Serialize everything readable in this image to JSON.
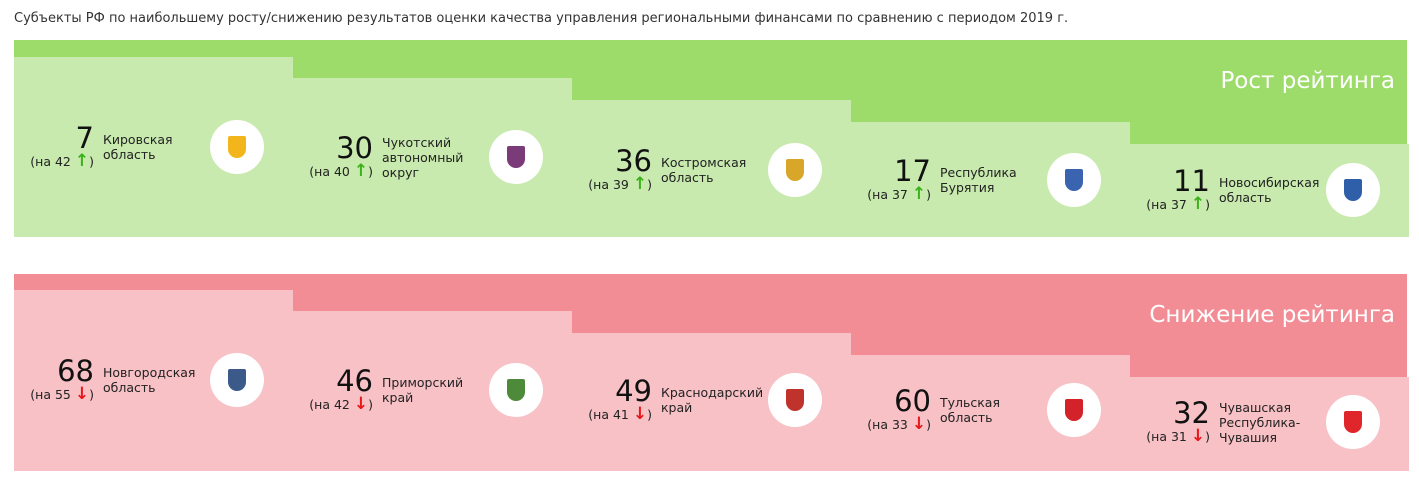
{
  "title": "Субъекты РФ по наибольшему росту/снижению результатов оценки качества управления региональными финансами по сравнению с периодом 2019 г.",
  "growth": {
    "label": "Рост рейтинга",
    "color": "#9ddc6a",
    "items": [
      {
        "rank": "7",
        "change": "(на 42",
        "arrow": "↑",
        "name": "Кировская область",
        "emblem_color": "#f2b51c"
      },
      {
        "rank": "30",
        "change": "(на 40",
        "arrow": "↑",
        "name": "Чукотский автономный округ",
        "emblem_color": "#7b3a78"
      },
      {
        "rank": "36",
        "change": "(на 39",
        "arrow": "↑",
        "name": "Костромская область",
        "emblem_color": "#d8a72a"
      },
      {
        "rank": "17",
        "change": "(на 37",
        "arrow": "↑",
        "name": "Республика Бурятия",
        "emblem_color": "#3a64b0"
      },
      {
        "rank": "11",
        "change": "(на 37",
        "arrow": "↑",
        "name": "Новосибирская область",
        "emblem_color": "#2f5fa8"
      }
    ]
  },
  "decline": {
    "label": "Снижение рейтинга",
    "color": "#f28d96",
    "items": [
      {
        "rank": "68",
        "change": "(на 55",
        "arrow": "↓",
        "name": "Новгородская область",
        "emblem_color": "#3b5a8a"
      },
      {
        "rank": "46",
        "change": "(на 42",
        "arrow": "↓",
        "name": "Приморский край",
        "emblem_color": "#4d8a3a"
      },
      {
        "rank": "49",
        "change": "(на 41",
        "arrow": "↓",
        "name": "Краснодарский край",
        "emblem_color": "#c0322c"
      },
      {
        "rank": "60",
        "change": "(на 33",
        "arrow": "↓",
        "name": "Тульская область",
        "emblem_color": "#d3222a"
      },
      {
        "rank": "32",
        "change": "(на 31",
        "arrow": "↓",
        "name": "Чувашская Республика-Чувашия",
        "emblem_color": "#e0262a"
      }
    ]
  },
  "close_paren": ")"
}
